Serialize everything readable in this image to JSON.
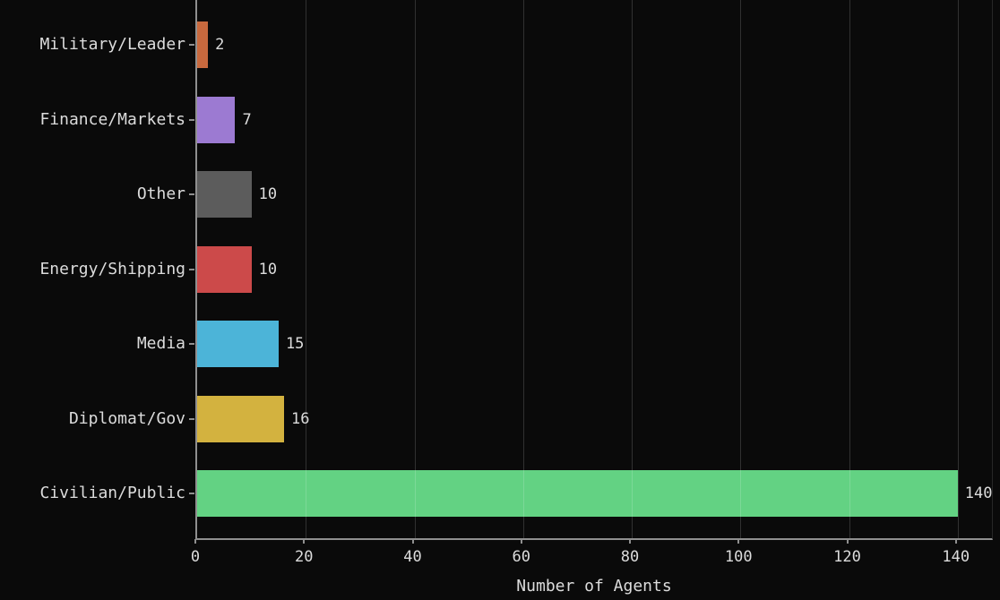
{
  "chart_data": {
    "type": "bar",
    "orientation": "horizontal",
    "title": "",
    "xlabel": "Number of Agents",
    "ylabel": "",
    "categories": [
      "Military/Leader",
      "Finance/Markets",
      "Other",
      "Energy/Shipping",
      "Media",
      "Diplomat/Gov",
      "Civilian/Public"
    ],
    "values": [
      2,
      7,
      10,
      10,
      15,
      16,
      140
    ],
    "bar_colors": [
      "#c8693e",
      "#9c7ad2",
      "#5c5c5c",
      "#cc4a4a",
      "#4cb4d8",
      "#d3b23f",
      "#63d283"
    ],
    "x_ticks": [
      0,
      20,
      40,
      60,
      80,
      100,
      120,
      140
    ],
    "xlim": [
      0,
      146.8
    ],
    "grid": "on",
    "legend": "none",
    "colors": {
      "background": "#0a0a0a",
      "text": "#dcdcdc",
      "spine": "#8f8f8f",
      "gridline": "rgba(255,255,255,0.16)"
    }
  }
}
